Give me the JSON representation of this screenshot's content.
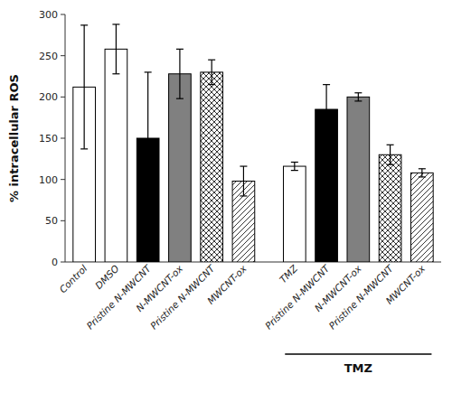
{
  "chart_data": {
    "type": "bar",
    "categories": [
      "Control",
      "DMSO",
      "Pristine N-MWCNT",
      "N-MWCNT-ox",
      "Pristine N-MWCNT",
      "MWCNT-ox",
      "TMZ",
      "Pristine N-MWCNT",
      "N-MWCNT-ox",
      "Pristine N-MWCNT",
      "MWCNT-ox"
    ],
    "values": [
      212,
      258,
      150,
      228,
      230,
      98,
      116,
      185,
      200,
      130,
      108
    ],
    "errors": [
      75,
      30,
      80,
      30,
      15,
      18,
      5,
      30,
      5,
      12,
      5
    ],
    "colors": [
      "white",
      "white",
      "black",
      "gray",
      "white",
      "white",
      "white",
      "black",
      "gray",
      "white",
      "white"
    ],
    "ylabel": "% intracellular ROS",
    "ylim": [
      0,
      300
    ],
    "yticks": [
      0,
      50,
      100,
      150,
      200,
      250,
      300
    ],
    "grid": false,
    "annotations": [
      {
        "text": "TMZ",
        "from": 6,
        "to": 10
      }
    ]
  }
}
